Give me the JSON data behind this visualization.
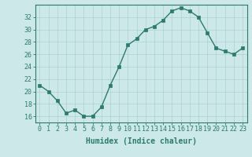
{
  "x": [
    0,
    1,
    2,
    3,
    4,
    5,
    6,
    7,
    8,
    9,
    10,
    11,
    12,
    13,
    14,
    15,
    16,
    17,
    18,
    19,
    20,
    21,
    22,
    23
  ],
  "y": [
    21,
    20,
    18.5,
    16.5,
    17,
    16,
    16,
    17.5,
    21,
    24,
    27.5,
    28.5,
    30,
    30.5,
    31.5,
    33,
    33.5,
    33,
    32,
    29.5,
    27,
    26.5,
    26,
    27
  ],
  "xlim": [
    -0.5,
    23.5
  ],
  "ylim": [
    15,
    34
  ],
  "yticks": [
    16,
    18,
    20,
    22,
    24,
    26,
    28,
    30,
    32
  ],
  "xticks": [
    0,
    1,
    2,
    3,
    4,
    5,
    6,
    7,
    8,
    9,
    10,
    11,
    12,
    13,
    14,
    15,
    16,
    17,
    18,
    19,
    20,
    21,
    22,
    23
  ],
  "xlabel": "Humidex (Indice chaleur)",
  "line_color": "#2d7a6e",
  "marker": "s",
  "marker_size": 2.5,
  "bg_color": "#cce8e8",
  "grid_color": "#aad0d0",
  "axes_color": "#2d7a6e",
  "tick_color": "#2d7a6e",
  "label_fontsize": 7,
  "tick_fontsize": 6
}
